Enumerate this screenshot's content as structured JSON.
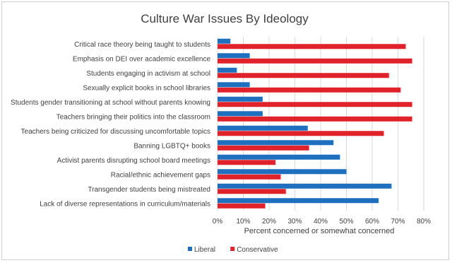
{
  "chart_data": {
    "type": "bar",
    "orientation": "horizontal",
    "title": "Culture War Issues By Ideology",
    "xlabel": "Percent concerned or somewhat concerned",
    "ylabel": "",
    "xlim": [
      0,
      80
    ],
    "xticks": [
      "0%",
      "10%",
      "20%",
      "30%",
      "40%",
      "50%",
      "60%",
      "70%",
      "80%"
    ],
    "grid": "vertical",
    "legend_position": "bottom",
    "categories": [
      "Critical race theory being taught to students",
      "Emphasis on DEI over academic excellence",
      "Students engaging in activism at school",
      "Sexually explicit books in school libraries",
      "Students gender transitioning at school without parents knowing",
      "Teachers bringing their politics into the classroom",
      "Teachers being criticized for discussing uncomfortable topics",
      "Banning LGBTQ+ books",
      "Activist parents disrupting school board meetings",
      "Racial/ethnic achievement gaps",
      "Transgender students being mistreated",
      "Lack of diverse representations in curriculum/materials"
    ],
    "series": [
      {
        "name": "Liberal",
        "color": "#1f6fbf",
        "values": [
          5,
          12.5,
          7.5,
          12.5,
          17.5,
          17.5,
          35,
          45,
          47.5,
          50,
          67.5,
          62.5
        ]
      },
      {
        "name": "Conservative",
        "color": "#e0222a",
        "values": [
          73,
          75.5,
          66.5,
          71,
          75.5,
          75.5,
          64.5,
          35.5,
          22.5,
          24.5,
          26.5,
          18.5
        ]
      }
    ]
  }
}
